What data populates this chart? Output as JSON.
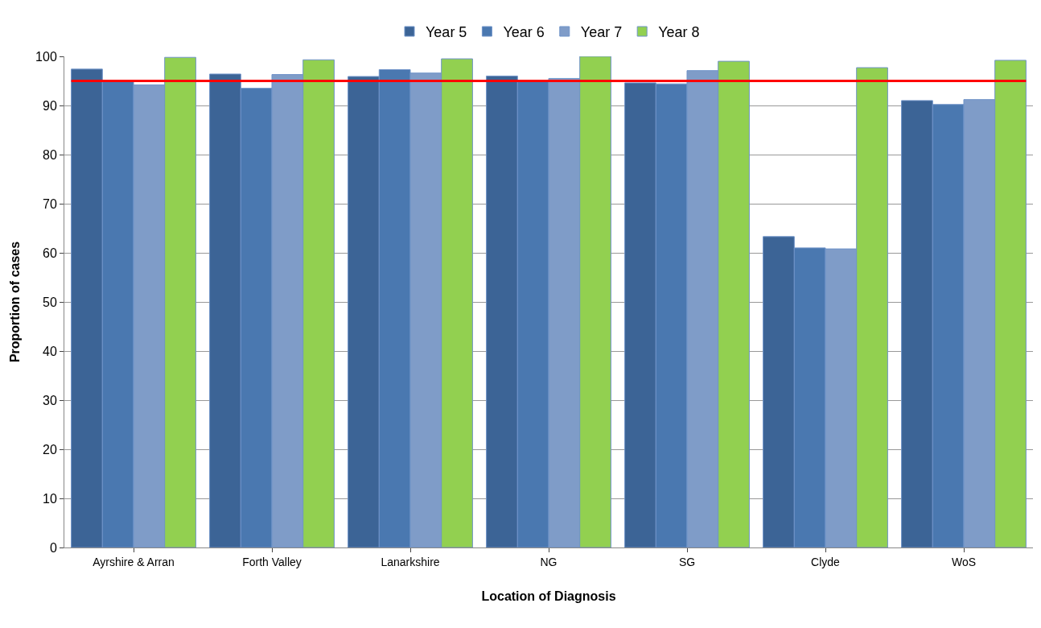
{
  "chart_data": {
    "type": "bar",
    "xlabel": "Location of Diagnosis",
    "ylabel": "Proportion of cases",
    "categories": [
      "Ayrshire & Arran",
      "Forth Valley",
      "Lanarkshire",
      "NG",
      "SG",
      "Clyde",
      "WoS"
    ],
    "series": [
      {
        "name": "Year 5",
        "color": "#3c6496",
        "values": [
          97.4,
          96.4,
          95.9,
          96.0,
          94.6,
          63.3,
          91.0
        ]
      },
      {
        "name": "Year 6",
        "color": "#4a78b0",
        "values": [
          95.0,
          93.5,
          97.3,
          95.1,
          94.4,
          61.0,
          90.2
        ]
      },
      {
        "name": "Year 7",
        "color": "#7f9cc8",
        "values": [
          94.2,
          96.3,
          96.6,
          95.5,
          97.1,
          60.8,
          91.2
        ]
      },
      {
        "name": "Year 8",
        "color": "#92d050",
        "values": [
          99.8,
          99.3,
          99.5,
          100,
          99.0,
          97.7,
          99.2
        ]
      }
    ],
    "ylim": [
      0,
      100
    ],
    "yticks": [
      0,
      10,
      20,
      30,
      40,
      50,
      60,
      70,
      80,
      90,
      100
    ],
    "grid": "y",
    "legend": "top",
    "ref_lines": [
      {
        "axis": "y",
        "value": 95,
        "color": "#ff0000"
      }
    ]
  }
}
